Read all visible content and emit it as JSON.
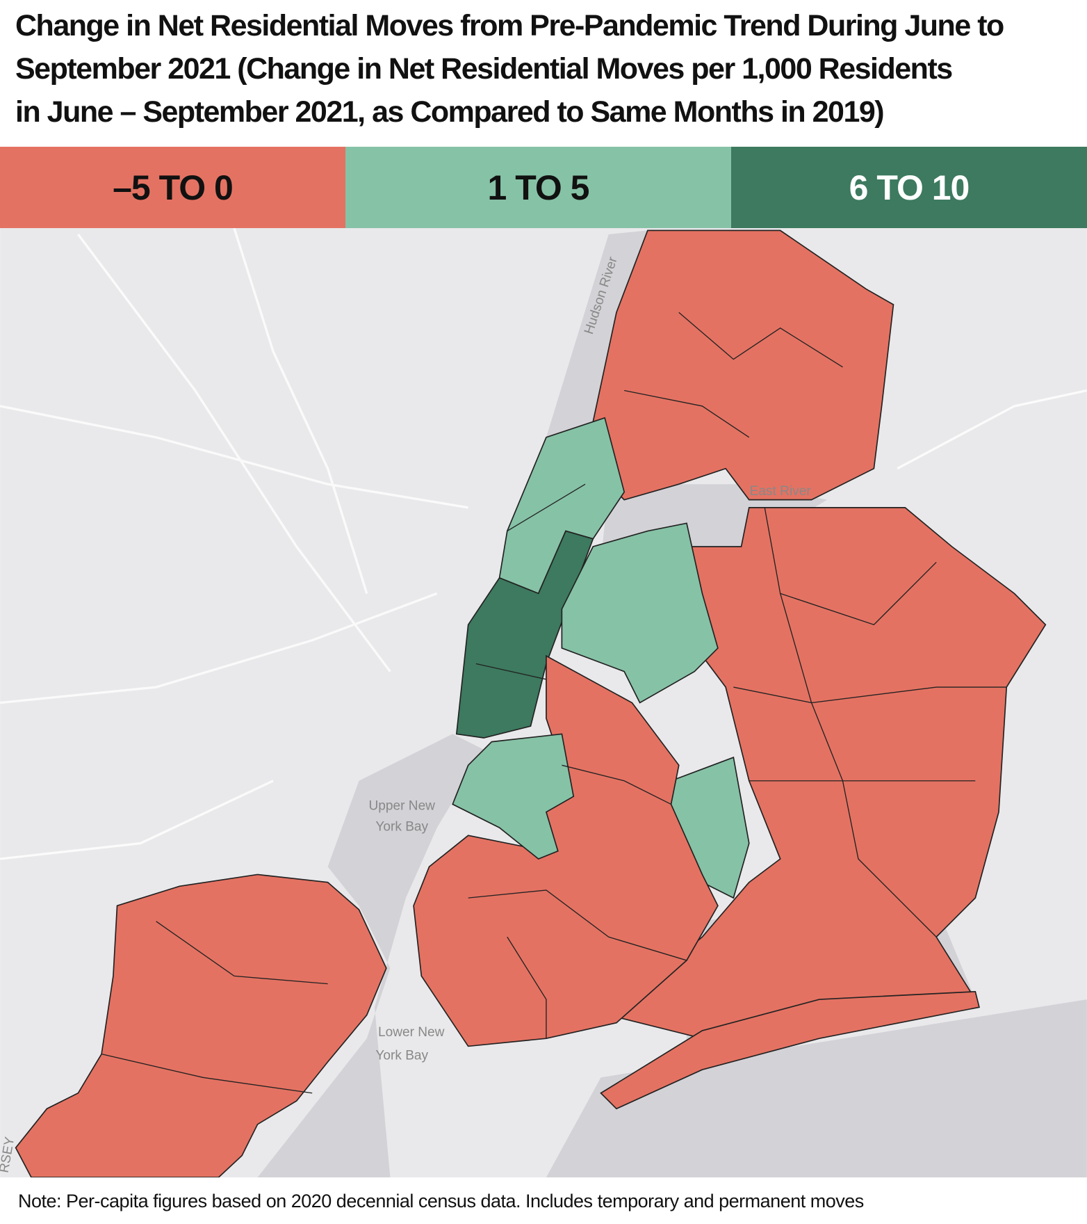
{
  "title_lines": [
    "Change in Net Residential Moves from Pre-Pandemic Trend During June to",
    "September 2021 (Change in Net Residential Moves per 1,000 Residents",
    "in June – September 2021, as Compared to Same Months in 2019)"
  ],
  "legend": [
    {
      "label": "–5 TO 0",
      "color": "#e47262"
    },
    {
      "label": "1 TO 5",
      "color": "#86c2a6"
    },
    {
      "label": "6 TO 10",
      "color": "#3d7a5f"
    }
  ],
  "map_labels": {
    "hudson": "Hudson River",
    "east": "East River",
    "upper": [
      "Upper New",
      "York Bay"
    ],
    "lower": [
      "Lower New",
      "York Bay"
    ],
    "jersey": "RSEY"
  },
  "note": "Note: Per-capita figures based on 2020 decennial census data. Includes temporary and permanent moves"
}
